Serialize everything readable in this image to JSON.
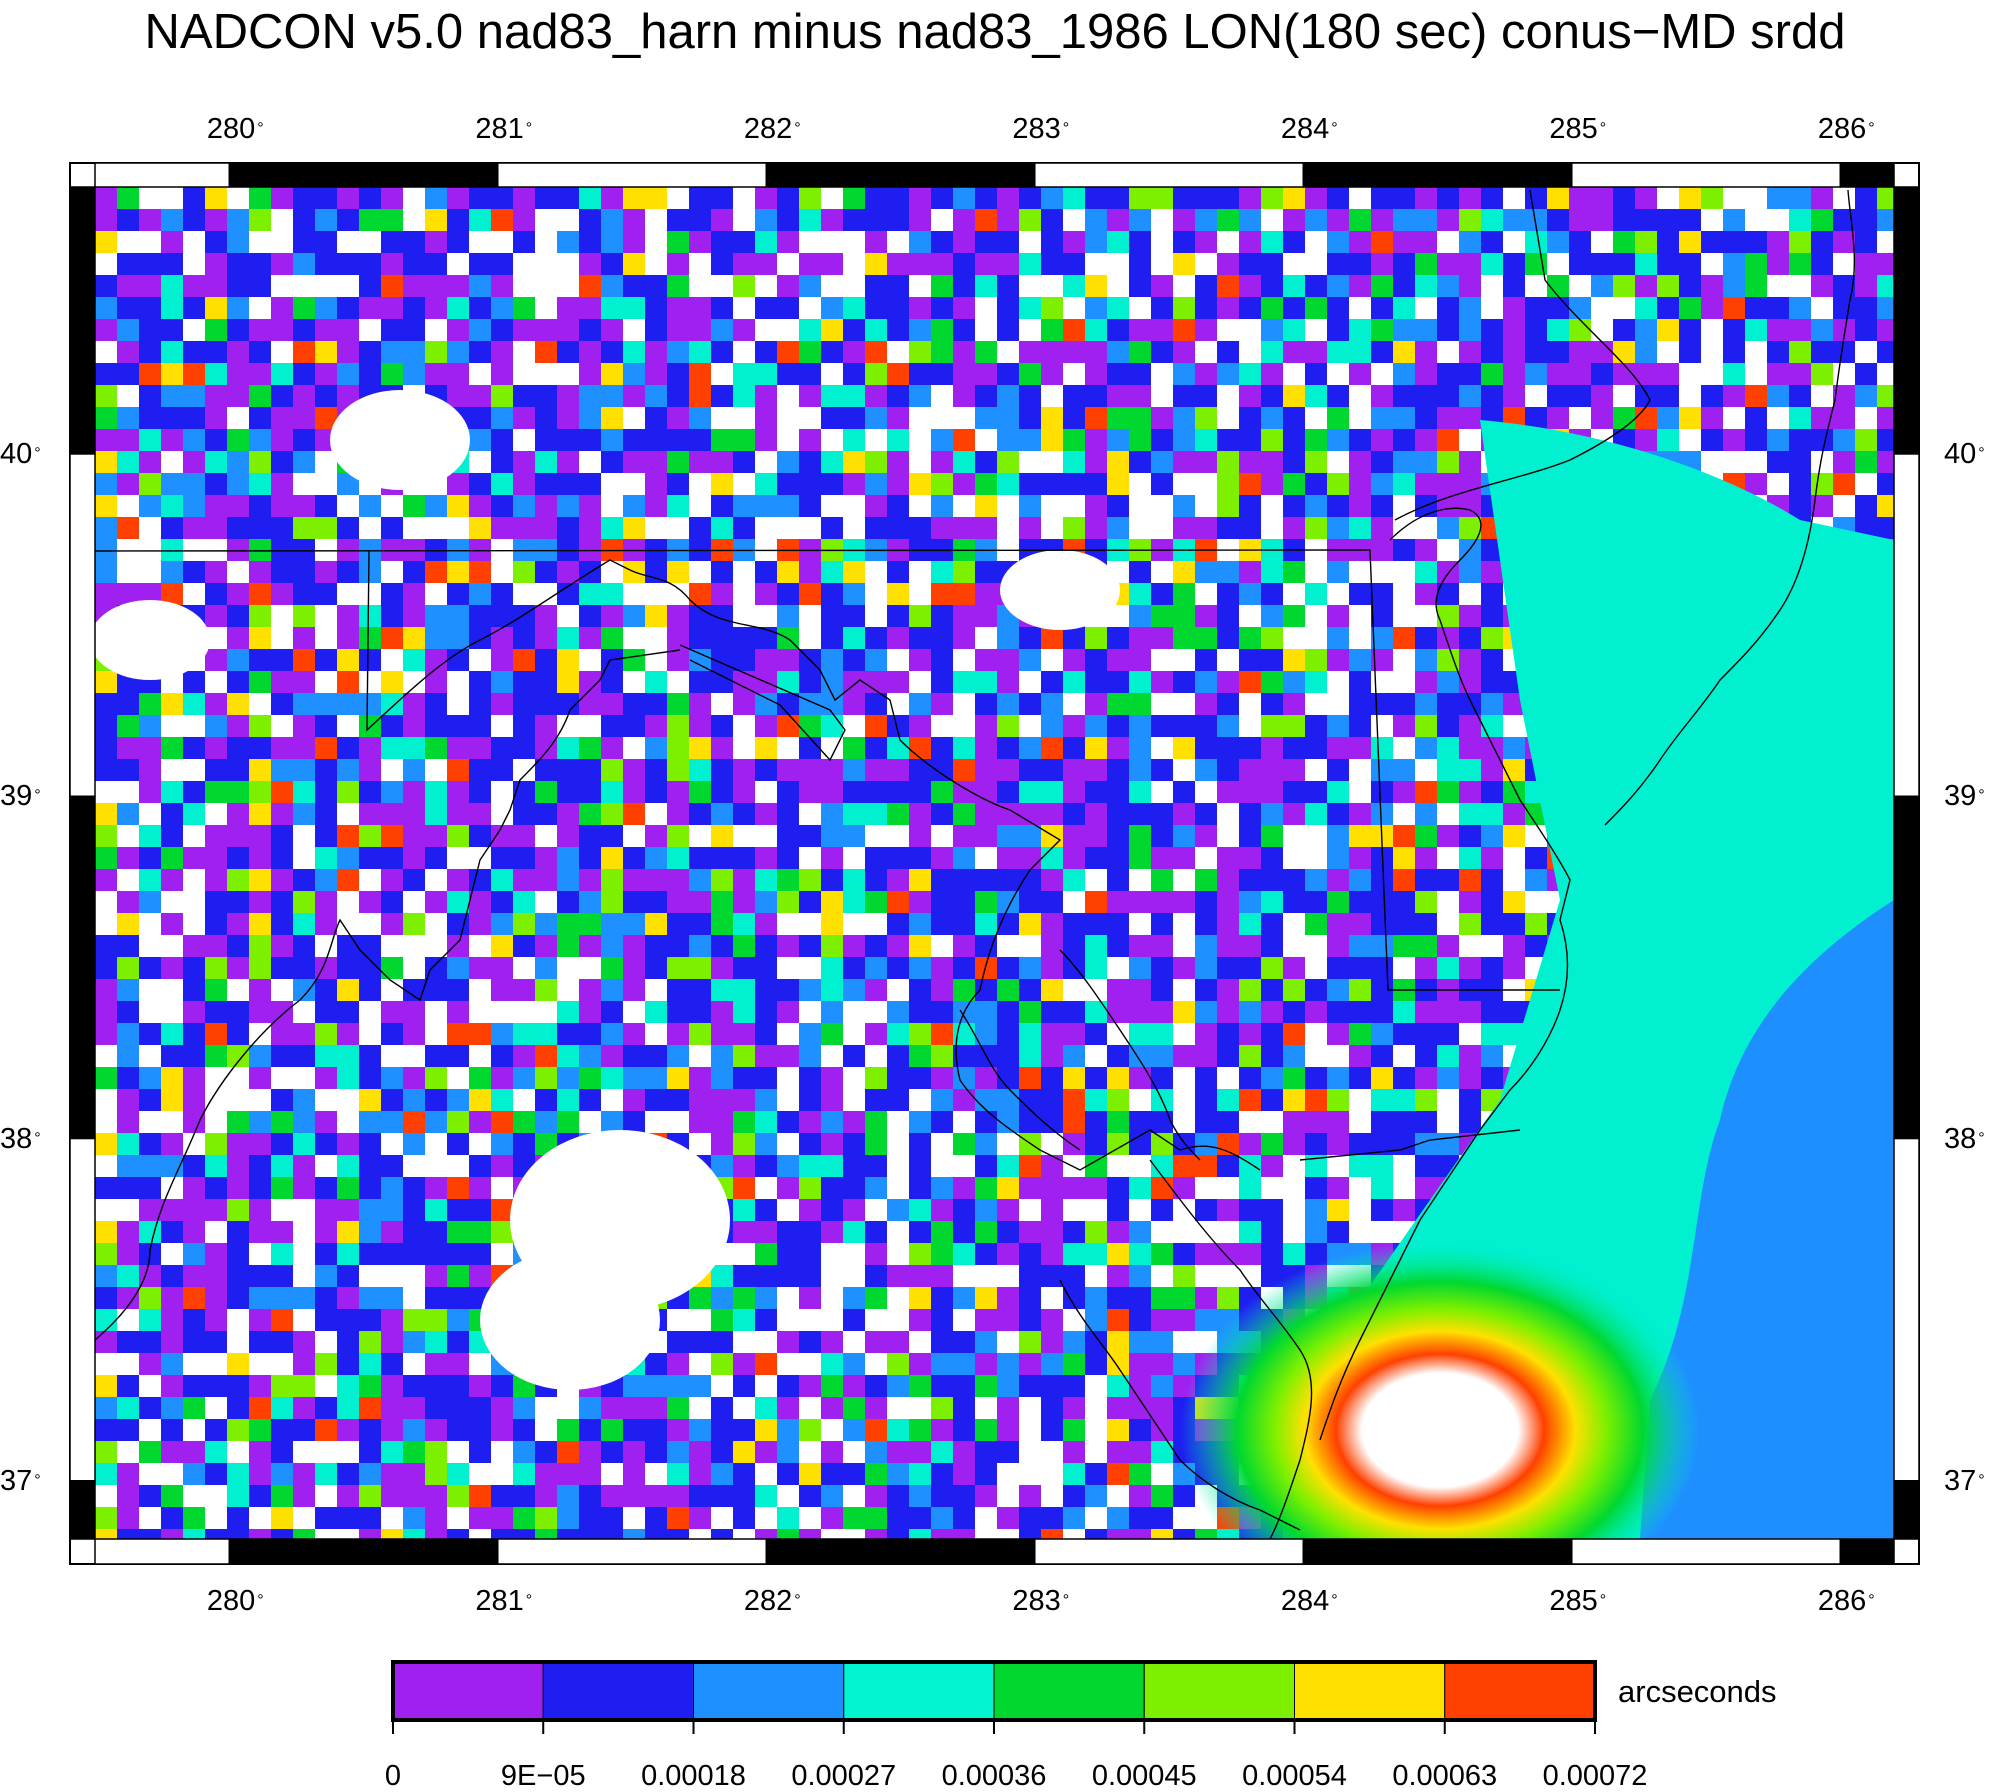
{
  "title": "NADCON v5.0 nad83_harn minus nad83_1986 LON(180 sec) conus−MD srdd",
  "map": {
    "lon_range": [
      279.5,
      286.2
    ],
    "lat_range": [
      36.83,
      40.78
    ],
    "lon_ticks": [
      "280",
      "281",
      "282",
      "283",
      "284",
      "285",
      "286"
    ],
    "lat_ticks": [
      "40",
      "39",
      "38",
      "37"
    ],
    "degree_symbol": "°",
    "background_colors": {
      "inland": "mixed high-frequency noise",
      "ocean_east": "#00f0d0",
      "ocean_south_east": "#1e8fff"
    }
  },
  "colorbar": {
    "unit": "arcseconds",
    "labels": [
      "0",
      "9E−05",
      "0.00018",
      "0.00027",
      "0.00036",
      "0.00045",
      "0.00054",
      "0.00063",
      "0.00072"
    ],
    "colors": [
      "#a020f0",
      "#1e1ef0",
      "#1e90ff",
      "#00f5d0",
      "#00d830",
      "#7cf000",
      "#ffe000",
      "#ff4000"
    ]
  }
}
